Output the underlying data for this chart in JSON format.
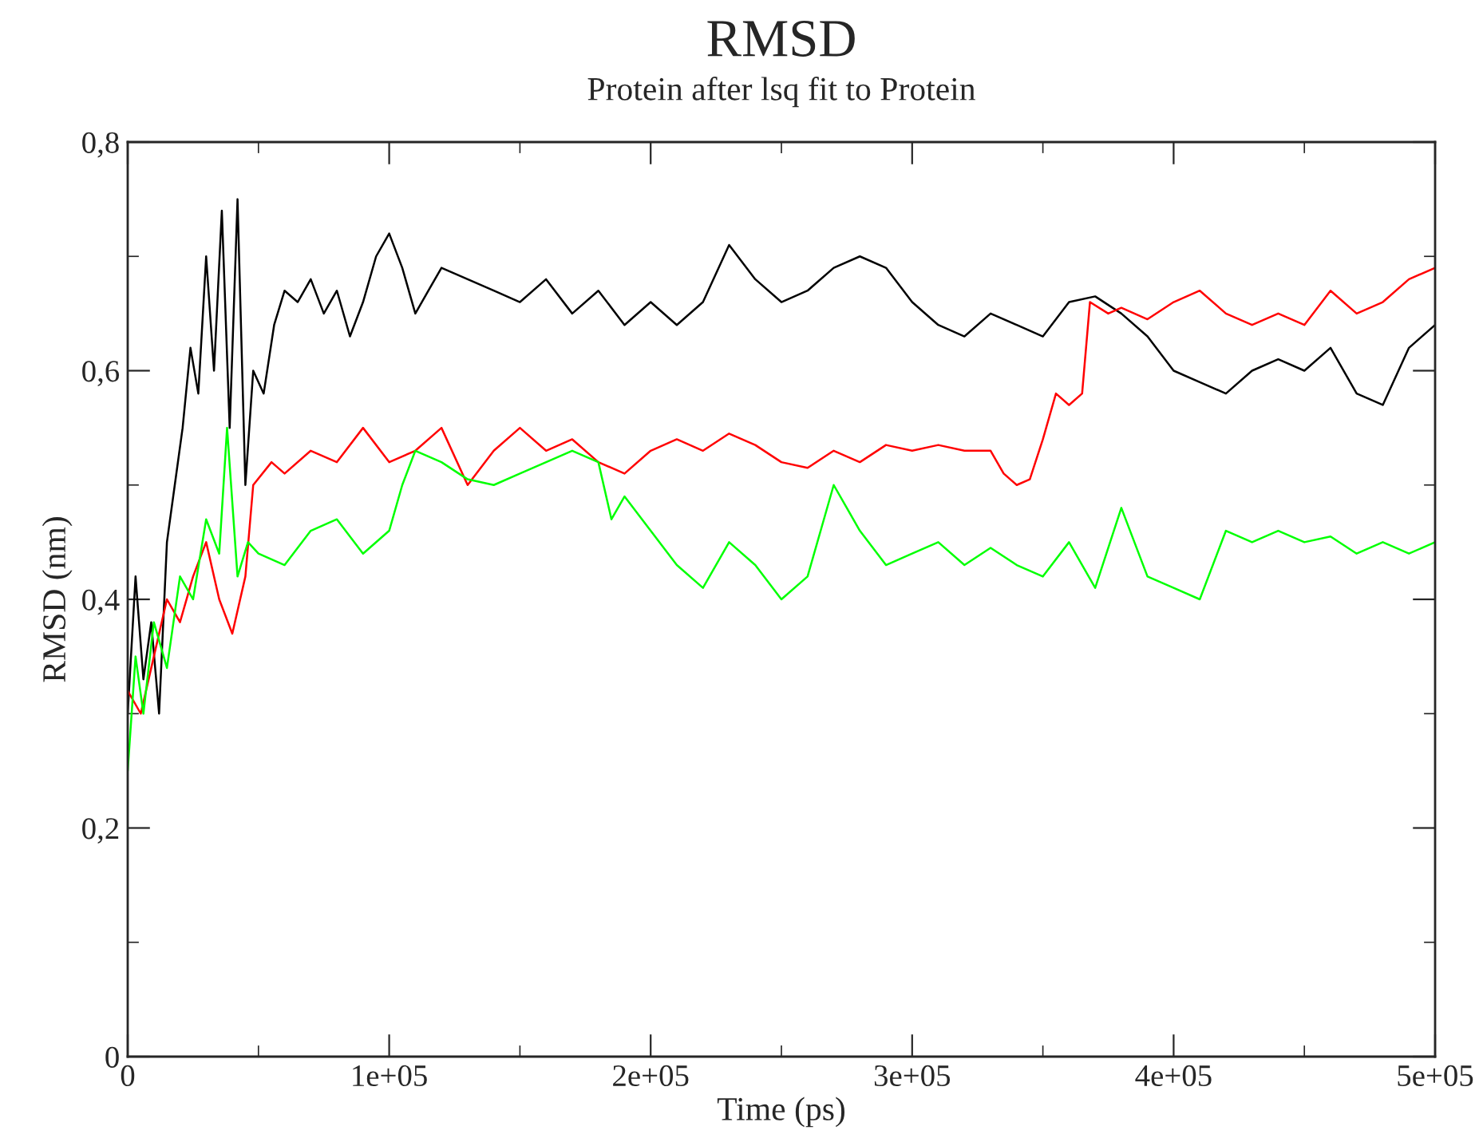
{
  "chart_data": {
    "type": "line",
    "title": "RMSD",
    "subtitle": "Protein after lsq fit to Protein",
    "xlabel": "Time (ps)",
    "ylabel": "RMSD (nm)",
    "xlim": [
      0,
      500000
    ],
    "ylim": [
      0,
      0.8
    ],
    "xticks": [
      0,
      {
        "value": 100000,
        "label": "1e+05"
      },
      {
        "value": 200000,
        "label": "2e+05"
      },
      {
        "value": 300000,
        "label": "3e+05"
      },
      {
        "value": 400000,
        "label": "4e+05"
      },
      {
        "value": 500000,
        "label": "5e+05"
      }
    ],
    "yticks": [
      0,
      {
        "value": 0.2,
        "label": "0,2"
      },
      {
        "value": 0.4,
        "label": "0,4"
      },
      {
        "value": 0.6,
        "label": "0,6"
      },
      {
        "value": 0.8,
        "label": "0,8"
      }
    ],
    "grid": false,
    "marker": "none",
    "line_style": "solid",
    "series": [
      {
        "color": "#000000",
        "x": [
          0,
          3000,
          6000,
          9000,
          12000,
          15000,
          18000,
          21000,
          24000,
          27000,
          30000,
          33000,
          36000,
          39000,
          42000,
          45000,
          48000,
          52000,
          56000,
          60000,
          65000,
          70000,
          75000,
          80000,
          85000,
          90000,
          95000,
          100000,
          105000,
          110000,
          115000,
          120000,
          130000,
          140000,
          150000,
          160000,
          170000,
          180000,
          190000,
          200000,
          210000,
          220000,
          230000,
          240000,
          250000,
          260000,
          270000,
          280000,
          290000,
          300000,
          310000,
          320000,
          330000,
          340000,
          350000,
          360000,
          370000,
          380000,
          390000,
          400000,
          410000,
          420000,
          430000,
          440000,
          450000,
          460000,
          470000,
          480000,
          490000,
          500000
        ],
        "values": [
          0.3,
          0.42,
          0.33,
          0.38,
          0.3,
          0.45,
          0.5,
          0.55,
          0.62,
          0.58,
          0.7,
          0.6,
          0.74,
          0.55,
          0.75,
          0.5,
          0.6,
          0.58,
          0.64,
          0.67,
          0.66,
          0.68,
          0.65,
          0.67,
          0.63,
          0.66,
          0.7,
          0.72,
          0.69,
          0.65,
          0.67,
          0.69,
          0.68,
          0.67,
          0.66,
          0.68,
          0.65,
          0.67,
          0.64,
          0.66,
          0.64,
          0.66,
          0.71,
          0.68,
          0.66,
          0.67,
          0.69,
          0.7,
          0.69,
          0.66,
          0.64,
          0.63,
          0.65,
          0.64,
          0.63,
          0.66,
          0.665,
          0.65,
          0.63,
          0.6,
          0.59,
          0.58,
          0.6,
          0.61,
          0.6,
          0.62,
          0.58,
          0.57,
          0.62,
          0.64
        ]
      },
      {
        "color": "#ff0000",
        "x": [
          0,
          5000,
          10000,
          15000,
          20000,
          25000,
          30000,
          35000,
          40000,
          45000,
          48000,
          55000,
          60000,
          70000,
          80000,
          90000,
          100000,
          110000,
          120000,
          130000,
          140000,
          150000,
          160000,
          170000,
          180000,
          190000,
          200000,
          210000,
          220000,
          230000,
          240000,
          250000,
          260000,
          270000,
          280000,
          290000,
          300000,
          310000,
          320000,
          330000,
          335000,
          340000,
          345000,
          350000,
          355000,
          360000,
          365000,
          368000,
          375000,
          380000,
          390000,
          400000,
          410000,
          420000,
          430000,
          440000,
          450000,
          460000,
          470000,
          480000,
          490000,
          500000
        ],
        "values": [
          0.32,
          0.3,
          0.35,
          0.4,
          0.38,
          0.42,
          0.45,
          0.4,
          0.37,
          0.42,
          0.5,
          0.52,
          0.51,
          0.53,
          0.52,
          0.55,
          0.52,
          0.53,
          0.55,
          0.5,
          0.53,
          0.55,
          0.53,
          0.54,
          0.52,
          0.51,
          0.53,
          0.54,
          0.53,
          0.545,
          0.535,
          0.52,
          0.515,
          0.53,
          0.52,
          0.535,
          0.53,
          0.535,
          0.53,
          0.53,
          0.51,
          0.5,
          0.505,
          0.54,
          0.58,
          0.57,
          0.58,
          0.66,
          0.65,
          0.655,
          0.645,
          0.66,
          0.67,
          0.65,
          0.64,
          0.65,
          0.64,
          0.67,
          0.65,
          0.66,
          0.68,
          0.69
        ]
      },
      {
        "color": "#00ff00",
        "x": [
          0,
          3000,
          6000,
          10000,
          15000,
          20000,
          25000,
          30000,
          35000,
          38000,
          42000,
          46000,
          50000,
          60000,
          70000,
          80000,
          90000,
          100000,
          105000,
          110000,
          120000,
          130000,
          140000,
          150000,
          160000,
          170000,
          180000,
          185000,
          190000,
          200000,
          210000,
          220000,
          230000,
          240000,
          250000,
          260000,
          270000,
          275000,
          280000,
          290000,
          300000,
          310000,
          320000,
          330000,
          340000,
          350000,
          360000,
          370000,
          380000,
          385000,
          390000,
          400000,
          410000,
          420000,
          430000,
          440000,
          450000,
          460000,
          470000,
          480000,
          490000,
          500000
        ],
        "values": [
          0.25,
          0.35,
          0.3,
          0.38,
          0.34,
          0.42,
          0.4,
          0.47,
          0.44,
          0.55,
          0.42,
          0.45,
          0.44,
          0.43,
          0.46,
          0.47,
          0.44,
          0.46,
          0.5,
          0.53,
          0.52,
          0.505,
          0.5,
          0.51,
          0.52,
          0.53,
          0.52,
          0.47,
          0.49,
          0.46,
          0.43,
          0.41,
          0.45,
          0.43,
          0.4,
          0.42,
          0.5,
          0.48,
          0.46,
          0.43,
          0.44,
          0.45,
          0.43,
          0.445,
          0.43,
          0.42,
          0.45,
          0.41,
          0.48,
          0.45,
          0.42,
          0.41,
          0.4,
          0.46,
          0.45,
          0.46,
          0.45,
          0.455,
          0.44,
          0.45,
          0.44,
          0.45
        ]
      }
    ]
  }
}
